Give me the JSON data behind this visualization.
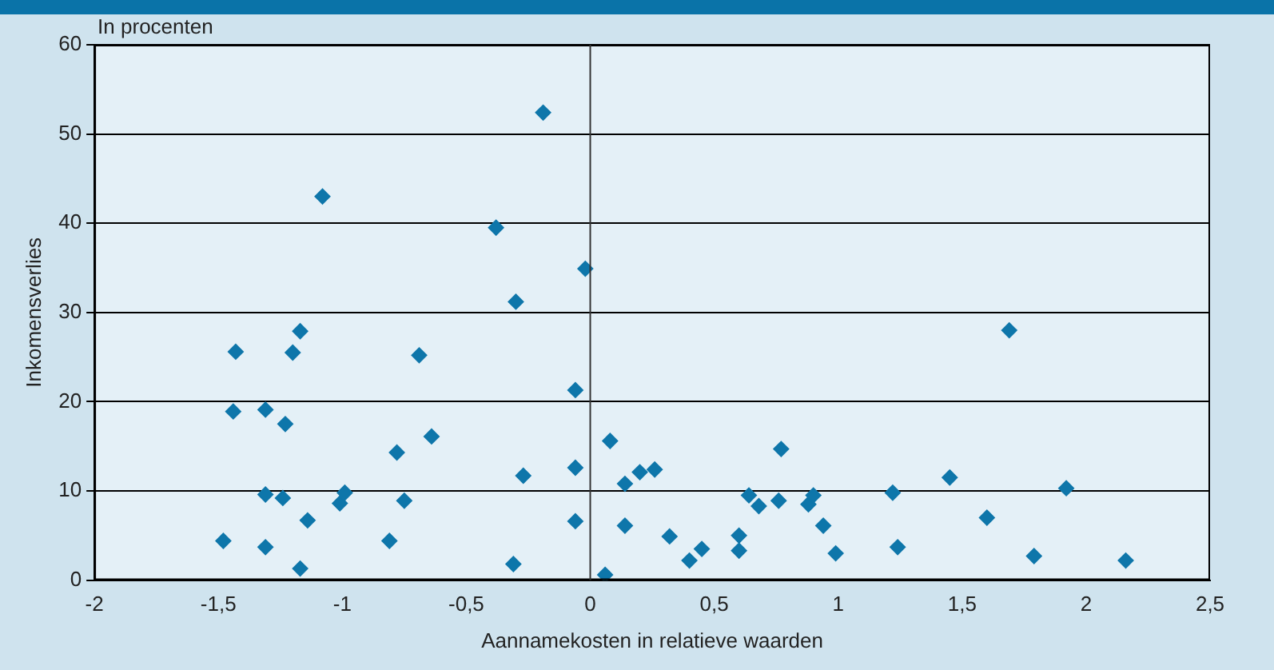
{
  "chart_data": {
    "type": "scatter",
    "xlabel": "Aannamekosten in relatieve waarden",
    "ylabel": "Inkomensverlies",
    "annotations": [
      "In procenten"
    ],
    "x": [
      -1.48,
      -1.43,
      -1.44,
      -1.31,
      -1.31,
      -1.31,
      -1.24,
      -1.23,
      -1.2,
      -1.17,
      -1.17,
      -1.14,
      -1.08,
      -1.01,
      -0.99,
      -0.81,
      -0.78,
      -0.75,
      -0.69,
      -0.64,
      -0.38,
      -0.3,
      -0.31,
      -0.27,
      -0.19,
      -0.06,
      -0.06,
      -0.06,
      -0.02,
      0.06,
      0.08,
      0.14,
      0.14,
      0.2,
      0.26,
      0.32,
      0.4,
      0.45,
      0.6,
      0.6,
      0.64,
      0.68,
      0.76,
      0.77,
      0.88,
      0.9,
      0.94,
      0.99,
      1.22,
      1.24,
      1.45,
      1.6,
      1.69,
      1.79,
      1.92,
      2.16
    ],
    "values": [
      4.4,
      25.6,
      18.9,
      19.1,
      9.6,
      3.7,
      9.2,
      17.5,
      25.5,
      27.9,
      1.3,
      6.7,
      43.0,
      8.6,
      9.8,
      4.4,
      14.3,
      8.9,
      25.2,
      16.1,
      39.5,
      31.2,
      1.8,
      11.7,
      52.4,
      21.3,
      12.6,
      6.6,
      34.9,
      0.6,
      15.6,
      10.8,
      6.1,
      12.1,
      12.4,
      4.9,
      2.2,
      3.5,
      5.0,
      3.3,
      9.5,
      8.3,
      8.9,
      14.7,
      8.5,
      9.5,
      6.1,
      3.0,
      9.8,
      3.7,
      11.5,
      7.0,
      28.0,
      2.7,
      10.3,
      2.2
    ],
    "color": "#0e76aa",
    "marker": "diamond",
    "grid": "y",
    "xlim": [
      -2,
      2.5
    ],
    "xticks": [
      -2,
      {
        "value": -1.5,
        "label": "-1,5"
      },
      -1,
      {
        "value": -0.5,
        "label": "-0,5"
      },
      0,
      {
        "value": 0.5,
        "label": "0,5"
      },
      1,
      {
        "value": 1.5,
        "label": "1,5"
      },
      2,
      {
        "value": 2.5,
        "label": "2,5"
      }
    ],
    "ylim": [
      0,
      60
    ],
    "yticks": [
      0,
      10,
      20,
      30,
      40,
      50,
      60
    ],
    "ref_lines": [
      {
        "axis": "x",
        "value": 0,
        "color": "#333333"
      }
    ]
  }
}
